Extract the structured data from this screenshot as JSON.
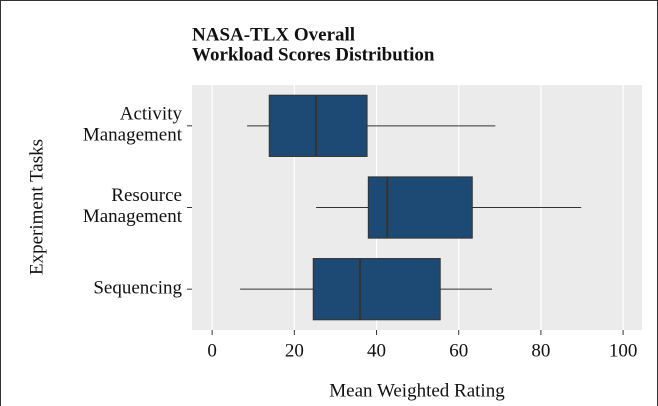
{
  "chart_data": {
    "type": "boxplot",
    "title": [
      "NASA-TLX Overall",
      "Workload Scores Distribution"
    ],
    "x_label": "Mean Weighted Rating",
    "y_label": "Experiment Tasks",
    "categories": [
      "Activity Management",
      "Resource Management",
      "Sequencing"
    ],
    "boxes": [
      {
        "min": 8.5,
        "q1": 13.9,
        "median": 25.3,
        "q3": 37.7,
        "max": 68.9
      },
      {
        "min": 25.3,
        "q1": 38,
        "median": 42.6,
        "q3": 63.3,
        "max": 89.8
      },
      {
        "min": 6.8,
        "q1": 24.6,
        "median": 36,
        "q3": 55.5,
        "max": 68.1
      }
    ],
    "color": "#1c4a74",
    "xlim": [
      -4.9,
      104.6
    ],
    "xticks": [
      0,
      20,
      40,
      60,
      80,
      100
    ],
    "grid": true
  }
}
